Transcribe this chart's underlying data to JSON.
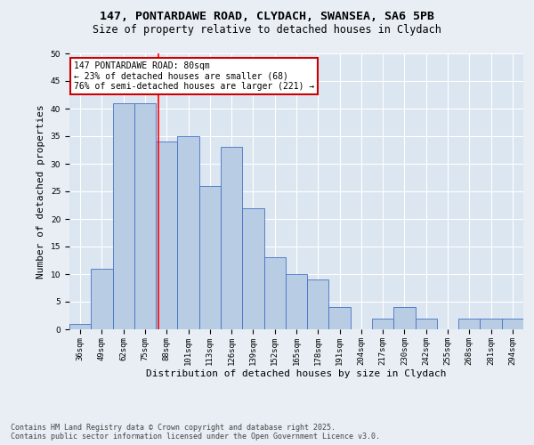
{
  "title_line1": "147, PONTARDAWE ROAD, CLYDACH, SWANSEA, SA6 5PB",
  "title_line2": "Size of property relative to detached houses in Clydach",
  "xlabel": "Distribution of detached houses by size in Clydach",
  "ylabel": "Number of detached properties",
  "categories": [
    "36sqm",
    "49sqm",
    "62sqm",
    "75sqm",
    "88sqm",
    "101sqm",
    "113sqm",
    "126sqm",
    "139sqm",
    "152sqm",
    "165sqm",
    "178sqm",
    "191sqm",
    "204sqm",
    "217sqm",
    "230sqm",
    "242sqm",
    "255sqm",
    "268sqm",
    "281sqm",
    "294sqm"
  ],
  "values": [
    1,
    11,
    41,
    41,
    34,
    35,
    26,
    33,
    22,
    13,
    10,
    9,
    4,
    0,
    2,
    4,
    2,
    0,
    2,
    2,
    2
  ],
  "bar_color": "#b8cce4",
  "bar_edge_color": "#4472c4",
  "red_line_x": 3.62,
  "annotation_text_line1": "147 PONTARDAWE ROAD: 80sqm",
  "annotation_text_line2": "← 23% of detached houses are smaller (68)",
  "annotation_text_line3": "76% of semi-detached houses are larger (221) →",
  "annotation_box_color": "#ffffff",
  "annotation_border_color": "#cc0000",
  "ylim": [
    0,
    50
  ],
  "yticks": [
    0,
    5,
    10,
    15,
    20,
    25,
    30,
    35,
    40,
    45,
    50
  ],
  "bg_color": "#e8eef4",
  "plot_bg_color": "#dce6f1",
  "footer_line1": "Contains HM Land Registry data © Crown copyright and database right 2025.",
  "footer_line2": "Contains public sector information licensed under the Open Government Licence v3.0.",
  "title_fontsize": 9.5,
  "subtitle_fontsize": 8.5,
  "axis_label_fontsize": 8,
  "tick_fontsize": 6.5,
  "annotation_fontsize": 7,
  "footer_fontsize": 6
}
